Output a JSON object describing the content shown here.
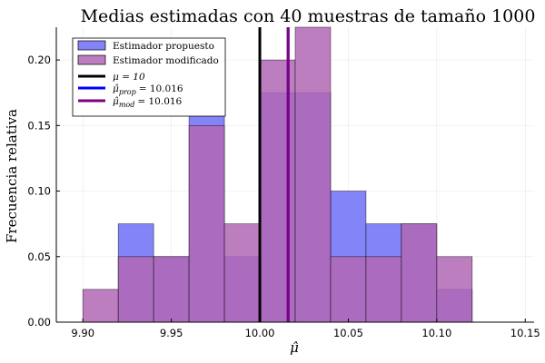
{
  "chart_data": {
    "type": "histogram",
    "title": "Medias estimadas con 40 muestras de tamaño 1000",
    "xlabel": "μ̂",
    "ylabel": "Frecuencia relativa",
    "xlim": [
      9.885,
      10.155
    ],
    "ylim": [
      0,
      0.225
    ],
    "xticks": [
      9.9,
      9.95,
      10.0,
      10.05,
      10.1,
      10.15
    ],
    "xtick_labels": [
      "9.90",
      "9.95",
      "10.00",
      "10.05",
      "10.10",
      "10.15"
    ],
    "yticks": [
      0,
      0.05,
      0.1,
      0.15,
      0.2
    ],
    "ytick_labels": [
      "0.00",
      "0.05",
      "0.10",
      "0.15",
      "0.20"
    ],
    "grid": true,
    "legend_position": "top-left",
    "bin_edges": [
      9.9,
      9.92,
      9.94,
      9.96,
      9.98,
      10.0,
      10.02,
      10.04,
      10.06,
      10.08,
      10.1,
      10.12
    ],
    "series": [
      {
        "name": "Estimador propuesto",
        "values": [
          0.0,
          0.075,
          0.05,
          0.175,
          0.05,
          0.175,
          0.175,
          0.1,
          0.075,
          0.075,
          0.025
        ],
        "color": "#6f6ff8"
      },
      {
        "name": "Estimador modificado",
        "values": [
          0.025,
          0.05,
          0.05,
          0.15,
          0.075,
          0.2,
          0.225,
          0.05,
          0.05,
          0.075,
          0.05
        ],
        "color": "#b267b5"
      }
    ],
    "vlines": [
      {
        "label_main": "μ = 10",
        "label_sub": "",
        "value": 10.0,
        "color": "#000000"
      },
      {
        "label_main": "μ̂",
        "label_sub": "prop",
        "label_tail": "= 10.016",
        "value": 10.016,
        "color": "#0000ff"
      },
      {
        "label_main": "μ̂",
        "label_sub": "mod",
        "label_tail": "= 10.016",
        "value": 10.016,
        "color": "#800080"
      }
    ]
  }
}
